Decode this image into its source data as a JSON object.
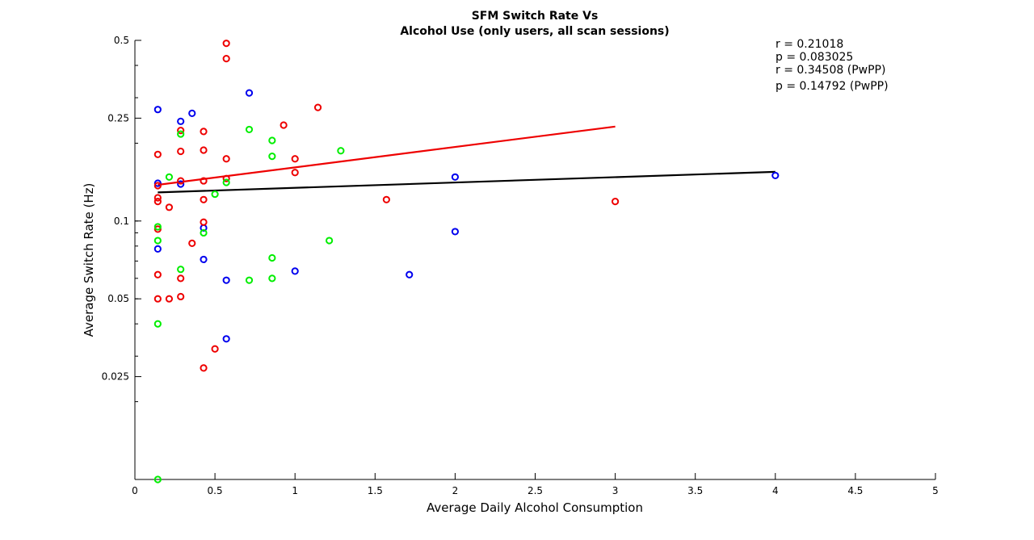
{
  "chart_data": {
    "type": "scatter",
    "title": [
      "SFM Switch Rate Vs",
      "Alcohol Use (only users, all scan sessions)"
    ],
    "xlabel": "Average Daily Alcohol Consumption",
    "ylabel": "Average Switch Rate (Hz)",
    "xlim": [
      0,
      5
    ],
    "ylim": [
      0.01,
      0.5
    ],
    "yscale": "log",
    "x_ticks": [
      "0",
      "0.5",
      "1",
      "1.5",
      "2",
      "2.5",
      "3",
      "3.5",
      "4",
      "4.5",
      "5"
    ],
    "y_ticks": [
      "0.025",
      "0.05",
      "0.1",
      "0.25",
      "0.5"
    ],
    "y_tick_values": [
      0.025,
      0.05,
      0.1,
      0.25,
      0.5
    ],
    "grid": false,
    "stats": [
      "r = 0.21018",
      "p = 0.083025",
      "r = 0.34508 (PwPP)",
      "p = 0.14792 (PwPP)"
    ],
    "series": [
      {
        "color": "#0000ee",
        "points": [
          [
            0.143,
            0.27
          ],
          [
            0.143,
            0.14
          ],
          [
            0.143,
            0.078
          ],
          [
            0.286,
            0.243
          ],
          [
            0.286,
            0.139
          ],
          [
            0.357,
            0.261
          ],
          [
            0.429,
            0.094
          ],
          [
            0.429,
            0.071
          ],
          [
            0.571,
            0.059
          ],
          [
            0.571,
            0.035
          ],
          [
            0.714,
            0.313
          ],
          [
            1.0,
            0.064
          ],
          [
            1.714,
            0.062
          ],
          [
            2.0,
            0.148
          ],
          [
            2.0,
            0.091
          ],
          [
            4.0,
            0.15
          ]
        ]
      },
      {
        "color": "#ee0000",
        "points": [
          [
            0.143,
            0.181
          ],
          [
            0.143,
            0.137
          ],
          [
            0.143,
            0.123
          ],
          [
            0.143,
            0.119
          ],
          [
            0.143,
            0.093
          ],
          [
            0.143,
            0.062
          ],
          [
            0.143,
            0.05
          ],
          [
            0.214,
            0.113
          ],
          [
            0.214,
            0.05
          ],
          [
            0.286,
            0.224
          ],
          [
            0.286,
            0.186
          ],
          [
            0.286,
            0.143
          ],
          [
            0.286,
            0.06
          ],
          [
            0.286,
            0.051
          ],
          [
            0.357,
            0.082
          ],
          [
            0.429,
            0.222
          ],
          [
            0.429,
            0.188
          ],
          [
            0.429,
            0.143
          ],
          [
            0.429,
            0.121
          ],
          [
            0.429,
            0.099
          ],
          [
            0.429,
            0.027
          ],
          [
            0.5,
            0.032
          ],
          [
            0.571,
            0.487
          ],
          [
            0.571,
            0.425
          ],
          [
            0.571,
            0.174
          ],
          [
            0.571,
            0.146
          ],
          [
            0.929,
            0.235
          ],
          [
            1.0,
            0.174
          ],
          [
            1.0,
            0.154
          ],
          [
            1.143,
            0.275
          ],
          [
            1.571,
            0.121
          ],
          [
            3.0,
            0.119
          ]
        ]
      },
      {
        "color": "#00ee00",
        "points": [
          [
            0.143,
            0.095
          ],
          [
            0.143,
            0.084
          ],
          [
            0.143,
            0.04
          ],
          [
            0.143,
            0.01
          ],
          [
            0.214,
            0.148
          ],
          [
            0.286,
            0.217
          ],
          [
            0.286,
            0.065
          ],
          [
            0.429,
            0.09
          ],
          [
            0.5,
            0.127
          ],
          [
            0.571,
            0.141
          ],
          [
            0.714,
            0.226
          ],
          [
            0.714,
            0.059
          ],
          [
            0.857,
            0.205
          ],
          [
            0.857,
            0.178
          ],
          [
            0.857,
            0.072
          ],
          [
            0.857,
            0.06
          ],
          [
            1.214,
            0.084
          ],
          [
            1.286,
            0.187
          ]
        ]
      }
    ],
    "fit_lines": [
      {
        "color": "#ee0000",
        "x": [
          0.143,
          3.0
        ],
        "y": [
          0.138,
          0.232
        ]
      },
      {
        "color": "#000000",
        "x": [
          0.143,
          4.0
        ],
        "y": [
          0.129,
          0.155
        ]
      }
    ]
  }
}
